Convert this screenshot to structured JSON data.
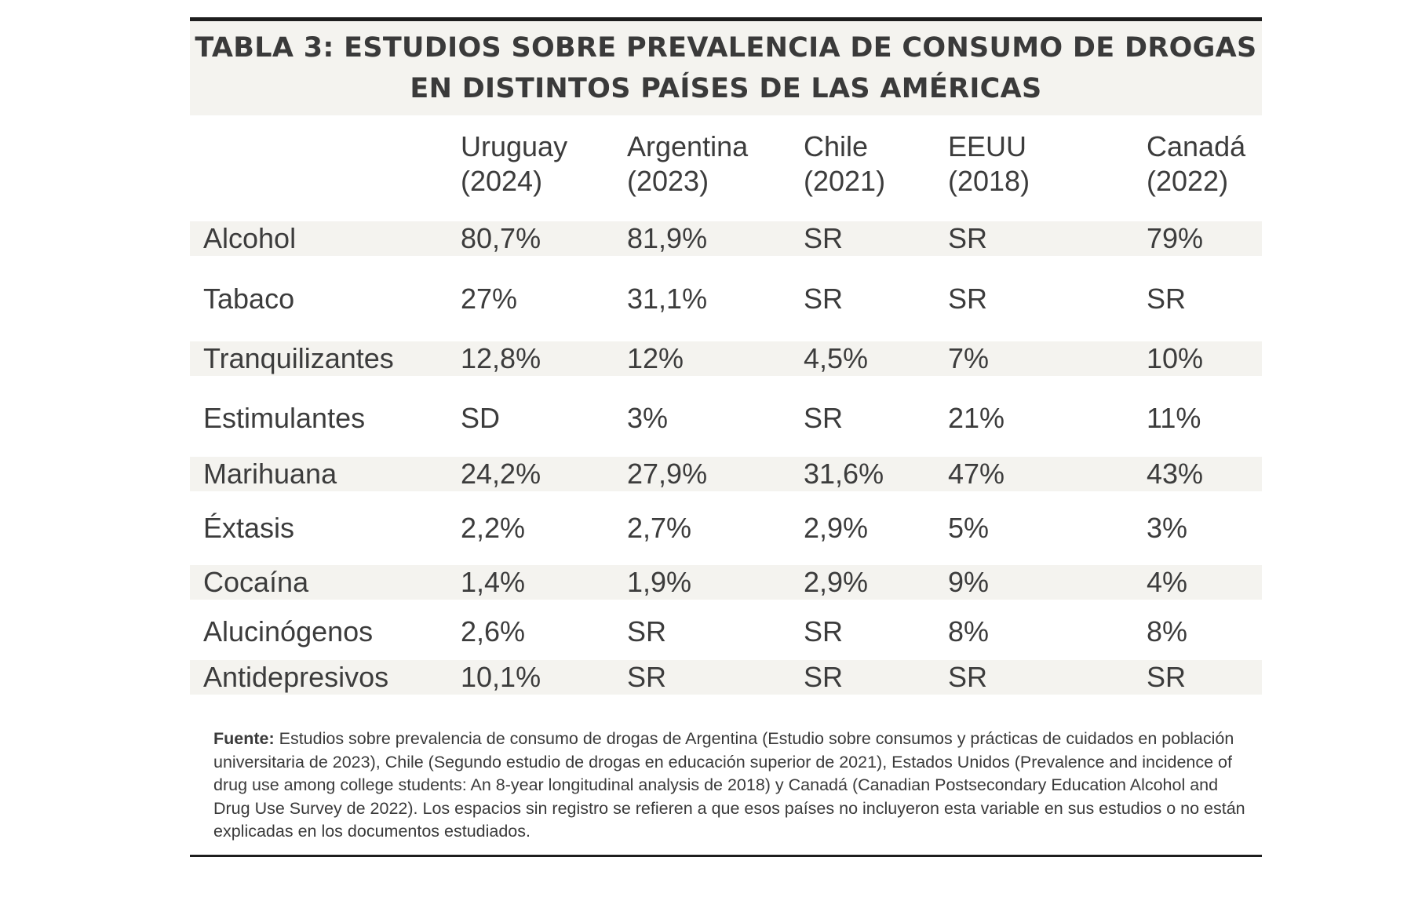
{
  "title": {
    "line1": "TABLA 3: ESTUDIOS SOBRE PREVALENCIA DE CONSUMO DE DROGAS",
    "line2": "EN DISTINTOS PAÍSES DE LAS AMÉRICAS"
  },
  "columns": [
    {
      "country": "Uruguay",
      "year": "(2024)"
    },
    {
      "country": "Argentina",
      "year": "(2023)"
    },
    {
      "country": "Chile",
      "year": "(2021)"
    },
    {
      "country": "EEUU",
      "year": "(2018)"
    },
    {
      "country": "Canadá",
      "year": "(2022)"
    }
  ],
  "rows": [
    {
      "label": "Alcohol",
      "values": [
        "80,7%",
        "81,9%",
        "SR",
        "SR",
        "79%"
      ]
    },
    {
      "label": "Tabaco",
      "values": [
        "27%",
        "31,1%",
        "SR",
        "SR",
        "SR"
      ]
    },
    {
      "label": "Tranquilizantes",
      "values": [
        "12,8%",
        "12%",
        "4,5%",
        "7%",
        "10%"
      ]
    },
    {
      "label": "Estimulantes",
      "values": [
        "SD",
        "3%",
        "SR",
        "21%",
        "11%"
      ]
    },
    {
      "label": "Marihuana",
      "values": [
        "24,2%",
        "27,9%",
        "31,6%",
        "47%",
        "43%"
      ]
    },
    {
      "label": "Éxtasis",
      "values": [
        "2,2%",
        "2,7%",
        "2,9%",
        "5%",
        "3%"
      ]
    },
    {
      "label": "Cocaína",
      "values": [
        "1,4%",
        "1,9%",
        "2,9%",
        "9%",
        "4%"
      ]
    },
    {
      "label": "Alucinógenos",
      "values": [
        "2,6%",
        "SR",
        "SR",
        "8%",
        "8%"
      ]
    },
    {
      "label": "Antidepresivos",
      "values": [
        "10,1%",
        "SR",
        "SR",
        "SR",
        "SR"
      ]
    }
  ],
  "footnote": {
    "label": "Fuente:",
    "text": " Estudios sobre prevalencia de consumo de drogas de Argentina (Estudio sobre consumos y prácticas de cuidados en población universitaria de 2023), Chile (Segundo estudio de drogas en educación superior de 2021), Estados Unidos (Prevalence and incidence of drug use among college students: An 8-year longitudinal analysis de 2018) y Canadá (Canadian Postsecondary Education Alcohol and Drug Use Survey de 2022). Los espacios sin registro se refieren a que esos países no incluyeron esta variable en sus estudios o no están explicadas en los documentos estudiados."
  },
  "colors": {
    "shade": "#f4f3ef",
    "text": "#3a3a3a",
    "rule": "#1e1e1e"
  }
}
